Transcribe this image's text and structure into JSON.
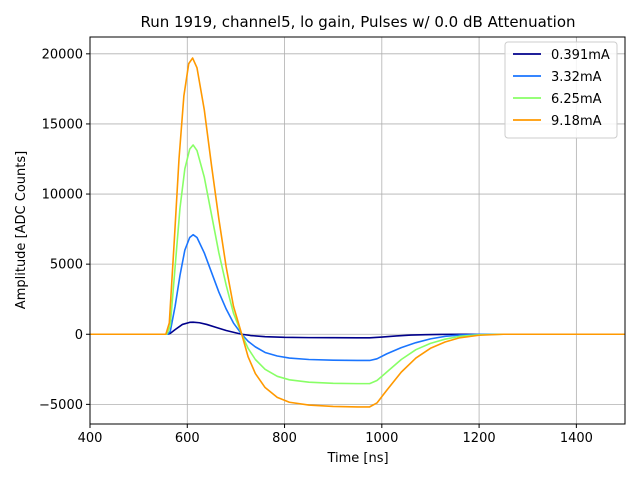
{
  "chart_data": {
    "type": "line",
    "title": "Run 1919, channel5, lo gain, Pulses w/ 0.0 dB Attenuation",
    "xlabel": "Time [ns]",
    "ylabel": "Amplitude [ADC Counts]",
    "xlim": [
      400,
      1500
    ],
    "ylim": [
      -6400,
      21200
    ],
    "xticks": [
      400,
      600,
      800,
      1000,
      1200,
      1400
    ],
    "yticks": [
      -5000,
      0,
      5000,
      10000,
      15000,
      20000
    ],
    "xtick_labels": [
      "400",
      "600",
      "800",
      "1000",
      "1200",
      "1400"
    ],
    "ytick_labels": [
      "−5000",
      "0",
      "5000",
      "10000",
      "15000",
      "20000"
    ],
    "grid": true,
    "legend_position": "top-right",
    "series": [
      {
        "name": "0.391mA",
        "color": "#00008b",
        "points": [
          [
            400,
            0
          ],
          [
            560,
            0
          ],
          [
            565,
            60
          ],
          [
            575,
            330
          ],
          [
            590,
            700
          ],
          [
            605,
            850
          ],
          [
            612,
            860
          ],
          [
            625,
            820
          ],
          [
            640,
            700
          ],
          [
            660,
            480
          ],
          [
            680,
            270
          ],
          [
            700,
            100
          ],
          [
            712,
            0
          ],
          [
            730,
            -90
          ],
          [
            760,
            -170
          ],
          [
            800,
            -220
          ],
          [
            850,
            -240
          ],
          [
            900,
            -245
          ],
          [
            950,
            -250
          ],
          [
            975,
            -250
          ],
          [
            1000,
            -200
          ],
          [
            1030,
            -120
          ],
          [
            1060,
            -60
          ],
          [
            1090,
            -30
          ],
          [
            1120,
            -10
          ],
          [
            1160,
            0
          ],
          [
            1500,
            0
          ]
        ]
      },
      {
        "name": "3.32mA",
        "color": "#1a75ff",
        "points": [
          [
            400,
            0
          ],
          [
            560,
            0
          ],
          [
            565,
            200
          ],
          [
            575,
            2000
          ],
          [
            585,
            4200
          ],
          [
            595,
            6000
          ],
          [
            605,
            6900
          ],
          [
            612,
            7100
          ],
          [
            620,
            6900
          ],
          [
            635,
            5800
          ],
          [
            650,
            4400
          ],
          [
            665,
            3000
          ],
          [
            680,
            1800
          ],
          [
            695,
            800
          ],
          [
            712,
            0
          ],
          [
            725,
            -500
          ],
          [
            740,
            -900
          ],
          [
            760,
            -1300
          ],
          [
            785,
            -1550
          ],
          [
            810,
            -1700
          ],
          [
            850,
            -1800
          ],
          [
            900,
            -1850
          ],
          [
            950,
            -1870
          ],
          [
            975,
            -1870
          ],
          [
            990,
            -1750
          ],
          [
            1010,
            -1400
          ],
          [
            1040,
            -950
          ],
          [
            1070,
            -600
          ],
          [
            1100,
            -330
          ],
          [
            1130,
            -150
          ],
          [
            1160,
            -60
          ],
          [
            1200,
            0
          ],
          [
            1500,
            0
          ]
        ]
      },
      {
        "name": "6.25mA",
        "color": "#88ff66",
        "points": [
          [
            400,
            0
          ],
          [
            558,
            0
          ],
          [
            565,
            600
          ],
          [
            575,
            4800
          ],
          [
            585,
            9000
          ],
          [
            595,
            11800
          ],
          [
            605,
            13200
          ],
          [
            612,
            13500
          ],
          [
            620,
            13100
          ],
          [
            635,
            11200
          ],
          [
            650,
            8500
          ],
          [
            665,
            5800
          ],
          [
            680,
            3500
          ],
          [
            695,
            1500
          ],
          [
            712,
            0
          ],
          [
            725,
            -1000
          ],
          [
            740,
            -1800
          ],
          [
            760,
            -2500
          ],
          [
            785,
            -3000
          ],
          [
            810,
            -3250
          ],
          [
            850,
            -3420
          ],
          [
            900,
            -3500
          ],
          [
            950,
            -3520
          ],
          [
            975,
            -3520
          ],
          [
            990,
            -3300
          ],
          [
            1010,
            -2700
          ],
          [
            1040,
            -1800
          ],
          [
            1070,
            -1100
          ],
          [
            1100,
            -650
          ],
          [
            1130,
            -350
          ],
          [
            1160,
            -150
          ],
          [
            1200,
            -40
          ],
          [
            1250,
            0
          ],
          [
            1500,
            0
          ]
        ]
      },
      {
        "name": "9.18mA",
        "color": "#ff9900",
        "points": [
          [
            400,
            0
          ],
          [
            556,
            0
          ],
          [
            563,
            800
          ],
          [
            573,
            6500
          ],
          [
            583,
            12500
          ],
          [
            593,
            17000
          ],
          [
            603,
            19300
          ],
          [
            611,
            19700
          ],
          [
            620,
            19000
          ],
          [
            635,
            16000
          ],
          [
            650,
            12000
          ],
          [
            665,
            8200
          ],
          [
            680,
            4800
          ],
          [
            695,
            2000
          ],
          [
            712,
            0
          ],
          [
            725,
            -1600
          ],
          [
            740,
            -2800
          ],
          [
            760,
            -3800
          ],
          [
            785,
            -4500
          ],
          [
            810,
            -4850
          ],
          [
            850,
            -5050
          ],
          [
            900,
            -5150
          ],
          [
            950,
            -5180
          ],
          [
            975,
            -5180
          ],
          [
            990,
            -4900
          ],
          [
            1010,
            -4000
          ],
          [
            1040,
            -2700
          ],
          [
            1070,
            -1700
          ],
          [
            1100,
            -1000
          ],
          [
            1130,
            -550
          ],
          [
            1160,
            -250
          ],
          [
            1200,
            -70
          ],
          [
            1250,
            0
          ],
          [
            1500,
            0
          ]
        ]
      }
    ]
  }
}
